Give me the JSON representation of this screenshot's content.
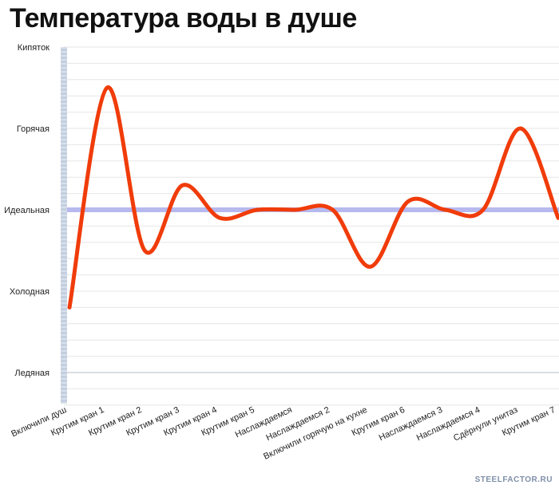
{
  "page": {
    "title": "Температура воды в душе",
    "watermark": "STEELFACTOR.RU"
  },
  "colors": {
    "line": "#f03c0a",
    "ideal_band": "#b7b9ee",
    "axis_strip": "#c3cfe0",
    "grid": "#e6e6e6",
    "major_grid": "#b4bcc8"
  },
  "chart_data": {
    "type": "line",
    "title": "Температура воды в душе",
    "y_levels": [
      "Ледяная",
      "Холодная",
      "Идеальная",
      "Горячая",
      "Кипяток"
    ],
    "ylim": [
      0,
      4
    ],
    "categories": [
      "Включили душ",
      "Крутим кран 1",
      "Крутим кран 2",
      "Крутим кран 3",
      "Крутим кран 4",
      "Крутим кран 5",
      "Наслаждаемся",
      "Наслаждаемся 2",
      "Включили горячую на кухне",
      "Крутим кран 6",
      "Наслаждаемся 3",
      "Наслаждаемся 4",
      "Сдёрнули унитаз",
      "Крутим кран 7"
    ],
    "series": [
      {
        "values": [
          0.8,
          3.5,
          1.5,
          2.3,
          1.9,
          2.0,
          2.0,
          2.0,
          1.3,
          2.1,
          2.0,
          2.0,
          3.0,
          1.9
        ]
      }
    ],
    "reference_line": {
      "value": 2.0
    },
    "grid": true,
    "legend": "none"
  }
}
